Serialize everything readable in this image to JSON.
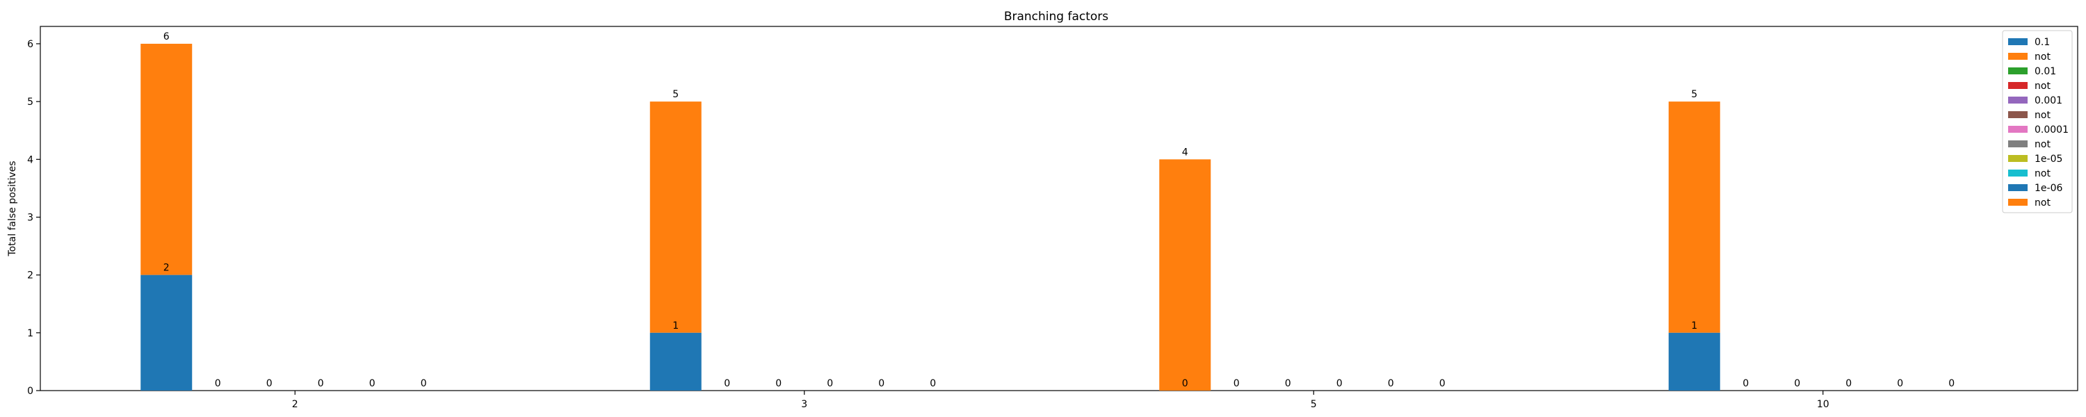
{
  "chart_data": {
    "type": "bar",
    "title": "Branching factors",
    "xlabel": "",
    "ylabel": "Total false positives",
    "categories": [
      "2",
      "3",
      "5",
      "10"
    ],
    "ylim": [
      0,
      6.3
    ],
    "yticks": [
      0,
      1,
      2,
      3,
      4,
      5,
      6
    ],
    "legend_position": "top-right",
    "grid": false,
    "groups": [
      {
        "name": "0.1",
        "base": [
          2,
          1,
          0,
          1
        ],
        "total": [
          6,
          5,
          4,
          5
        ]
      },
      {
        "name": "0.01",
        "base": [
          0,
          0,
          0,
          0
        ],
        "total": [
          0,
          0,
          0,
          0
        ]
      },
      {
        "name": "0.001",
        "base": [
          0,
          0,
          0,
          0
        ],
        "total": [
          0,
          0,
          0,
          0
        ]
      },
      {
        "name": "0.0001",
        "base": [
          0,
          0,
          0,
          0
        ],
        "total": [
          0,
          0,
          0,
          0
        ]
      },
      {
        "name": "1e-05",
        "base": [
          0,
          0,
          0,
          0
        ],
        "total": [
          0,
          0,
          0,
          0
        ]
      },
      {
        "name": "1e-06",
        "base": [
          0,
          0,
          0,
          0
        ],
        "total": [
          0,
          0,
          0,
          0
        ]
      }
    ],
    "legend": [
      {
        "label": "0.1",
        "color": "#1f77b4"
      },
      {
        "label": "not",
        "color": "#ff7f0e"
      },
      {
        "label": "0.01",
        "color": "#2ca02c"
      },
      {
        "label": "not",
        "color": "#d62728"
      },
      {
        "label": "0.001",
        "color": "#9467bd"
      },
      {
        "label": "not",
        "color": "#8c564b"
      },
      {
        "label": "0.0001",
        "color": "#e377c2"
      },
      {
        "label": "not",
        "color": "#7f7f7f"
      },
      {
        "label": "1e-05",
        "color": "#bcbd22"
      },
      {
        "label": "not",
        "color": "#17becf"
      },
      {
        "label": "1e-06",
        "color": "#1f77b4"
      },
      {
        "label": "not",
        "color": "#ff7f0e"
      }
    ]
  }
}
